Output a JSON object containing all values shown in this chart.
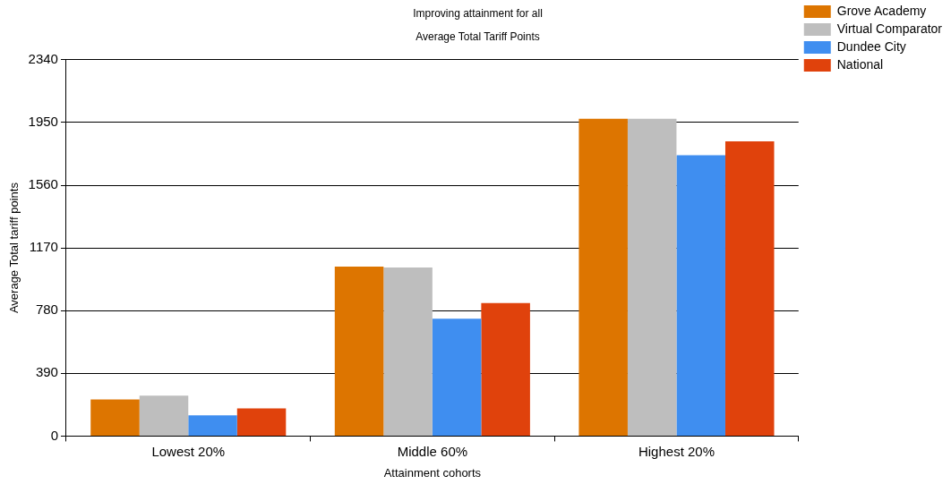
{
  "chart_data": {
    "type": "bar",
    "title": "Improving attainment for all",
    "subtitle": "Average Total Tariff Points",
    "xlabel": "Attainment cohorts",
    "ylabel": "Average Total tariff points",
    "categories": [
      "Lowest 20%",
      "Middle 60%",
      "Highest 20%"
    ],
    "series": [
      {
        "name": "Grove Academy",
        "color": "#dd7500",
        "values": [
          227,
          1054,
          1973
        ]
      },
      {
        "name": "Virtual Comparator",
        "color": "#bebebe",
        "values": [
          251,
          1048,
          1973
        ]
      },
      {
        "name": "Dundee City",
        "color": "#3f8ef0",
        "values": [
          129,
          729,
          1746
        ]
      },
      {
        "name": "National",
        "color": "#e0420c",
        "values": [
          172,
          827,
          1832
        ]
      }
    ],
    "ylim": [
      0,
      2340
    ],
    "yticks": [
      0,
      390,
      780,
      1170,
      1560,
      1950,
      2340
    ],
    "grid": "y",
    "legend": "top right"
  }
}
